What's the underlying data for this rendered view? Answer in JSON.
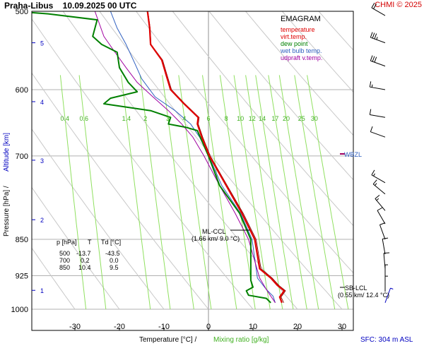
{
  "header": {
    "title": "Praha-Libus    10.09.2025 00 UTC",
    "credit": "CHMI © 2025"
  },
  "footer": {
    "surface": "SFC: 304 m ASL"
  },
  "colors": {
    "temperature": "#e00000",
    "virt_temp": "#800000",
    "dew_point": "#008000",
    "wet_bulb": "#3060c0",
    "updraft": "#a000a0",
    "mixing_ratio": "#90e060",
    "dry_adiabat": "#c8c8c8",
    "grid": "#b0b0b0",
    "altitude": "#0000c0",
    "title_red": "#d40000"
  },
  "chart_data": {
    "type": "line",
    "title": "EMAGRAM",
    "xlabel": "Temperature [°C]  /",
    "xlabel2": "Mixing ratio [g/kg]",
    "ylabel": "Pressure [hPa]  /",
    "ylabel2": "Altitude [km]",
    "xlim": [
      -40,
      33
    ],
    "ylim": [
      1000,
      500
    ],
    "x_ticks": [
      -30,
      -20,
      -10,
      0,
      10,
      20,
      30
    ],
    "pressure_ticks": [
      500,
      600,
      700,
      850,
      925,
      1000
    ],
    "altitude_ticks": [
      {
        "label": "1",
        "p": 957
      },
      {
        "label": "2",
        "p": 812
      },
      {
        "label": "3",
        "p": 707
      },
      {
        "label": "4",
        "p": 617
      },
      {
        "label": "5",
        "p": 538
      }
    ],
    "mixing_ratio_lines": [
      0.4,
      0.6,
      1.4,
      2,
      3,
      4,
      6,
      8,
      10,
      12,
      14,
      17,
      20,
      25,
      30
    ],
    "legend": [
      {
        "label": "temperature",
        "color": "#e00000"
      },
      {
        "label": "virt.temp.",
        "color": "#e00000"
      },
      {
        "label": "dew point",
        "color": "#008000"
      },
      {
        "label": "wet bulb temp.",
        "color": "#3060c0"
      },
      {
        "label": "udpraft v.temp.",
        "color": "#a000a0"
      }
    ],
    "series": [
      {
        "name": "temperature",
        "points": [
          [
            16.5,
            985
          ],
          [
            16.0,
            972
          ],
          [
            17.0,
            958
          ],
          [
            15.5,
            946
          ],
          [
            14.0,
            930
          ],
          [
            11.5,
            910
          ],
          [
            10.4,
            850
          ],
          [
            7.5,
            800
          ],
          [
            4.0,
            750
          ],
          [
            0.2,
            700
          ],
          [
            -1.5,
            670
          ],
          [
            -2.5,
            650
          ],
          [
            -2.3,
            640
          ],
          [
            -5.5,
            620
          ],
          [
            -8.5,
            600
          ],
          [
            -9.5,
            580
          ],
          [
            -10.5,
            560
          ],
          [
            -13.0,
            540
          ],
          [
            -13.2,
            520
          ],
          [
            -13.7,
            500
          ]
        ]
      },
      {
        "name": "virt.temp.",
        "points": [
          [
            16.9,
            985
          ],
          [
            16.3,
            972
          ],
          [
            17.3,
            958
          ],
          [
            15.8,
            946
          ],
          [
            14.3,
            930
          ],
          [
            11.8,
            910
          ],
          [
            10.7,
            850
          ],
          [
            7.8,
            800
          ],
          [
            4.2,
            750
          ],
          [
            0.4,
            700
          ],
          [
            -1.3,
            670
          ],
          [
            -2.3,
            650
          ],
          [
            -2.1,
            640
          ],
          [
            -5.3,
            620
          ],
          [
            -8.3,
            600
          ],
          [
            -9.3,
            580
          ],
          [
            -10.3,
            560
          ],
          [
            -12.9,
            540
          ],
          [
            -13.1,
            520
          ],
          [
            -13.6,
            500
          ]
        ]
      },
      {
        "name": "dew point",
        "points": [
          [
            14.0,
            985
          ],
          [
            13.0,
            975
          ],
          [
            9.0,
            968
          ],
          [
            8.5,
            958
          ],
          [
            10.0,
            950
          ],
          [
            9.5,
            935
          ],
          [
            9.5,
            850
          ],
          [
            7.0,
            800
          ],
          [
            2.5,
            750
          ],
          [
            0.0,
            700
          ],
          [
            -2.5,
            660
          ],
          [
            -5.0,
            655
          ],
          [
            -9.0,
            650
          ],
          [
            -8.5,
            640
          ],
          [
            -13.0,
            630
          ],
          [
            -23.5,
            620
          ],
          [
            -22.0,
            612
          ],
          [
            -16.0,
            603
          ],
          [
            -18.0,
            590
          ],
          [
            -20.0,
            570
          ],
          [
            -20.5,
            550
          ],
          [
            -24.0,
            540
          ],
          [
            -26.0,
            530
          ],
          [
            -25.0,
            510
          ],
          [
            -36.0,
            503
          ],
          [
            -43.5,
            500
          ]
        ]
      },
      {
        "name": "wet bulb temp.",
        "points": [
          [
            15.0,
            985
          ],
          [
            14.5,
            970
          ],
          [
            13.0,
            955
          ],
          [
            11.0,
            930
          ],
          [
            9.8,
            850
          ],
          [
            7.2,
            800
          ],
          [
            3.0,
            750
          ],
          [
            0.1,
            700
          ],
          [
            -2.0,
            670
          ],
          [
            -4.0,
            650
          ],
          [
            -7.5,
            630
          ],
          [
            -12.0,
            610
          ],
          [
            -15.0,
            585
          ],
          [
            -16.5,
            565
          ],
          [
            -18.5,
            540
          ],
          [
            -20.5,
            520
          ],
          [
            -22.0,
            500
          ]
        ]
      },
      {
        "name": "udpraft v.temp.",
        "points": [
          [
            15.0,
            985
          ],
          [
            14.0,
            970
          ],
          [
            13.0,
            955
          ],
          [
            11.5,
            930
          ],
          [
            9.0,
            850
          ],
          [
            6.0,
            800
          ],
          [
            2.5,
            750
          ],
          [
            -1.0,
            700
          ],
          [
            -3.5,
            670
          ],
          [
            -6.0,
            650
          ],
          [
            -9.0,
            630
          ],
          [
            -12.5,
            610
          ],
          [
            -16.0,
            590
          ],
          [
            -18.5,
            570
          ],
          [
            -21.0,
            550
          ],
          [
            -23.5,
            530
          ],
          [
            -25.5,
            500
          ]
        ]
      }
    ],
    "table": {
      "headers": [
        "p [hPa]",
        "T",
        "Td [°C]"
      ],
      "rows": [
        [
          "500",
          "-13.7",
          "-43.5"
        ],
        [
          "700",
          "0.2",
          "0.0"
        ],
        [
          "850",
          "10.4",
          "9.5"
        ]
      ]
    },
    "annotations": {
      "wbzl": "WBZL",
      "ml_ccl": "ML-CCL",
      "ml_ccl_detail": "(1.66 km/ 9.0 °C)",
      "sb_lcl": "SB-LCL",
      "sb_lcl_detail": "(0.55 km/ 12.4 °C)"
    },
    "wind_barbs": [
      {
        "p": 505,
        "dir": 300,
        "speed": 20
      },
      {
        "p": 538,
        "dir": 290,
        "speed": 35
      },
      {
        "p": 568,
        "dir": 290,
        "speed": 30
      },
      {
        "p": 600,
        "dir": 280,
        "speed": 15
      },
      {
        "p": 640,
        "dir": 280,
        "speed": 10
      },
      {
        "p": 670,
        "dir": 290,
        "speed": 10
      },
      {
        "p": 745,
        "dir": 300,
        "speed": 15
      },
      {
        "p": 765,
        "dir": 310,
        "speed": 15
      },
      {
        "p": 795,
        "dir": 320,
        "speed": 15
      },
      {
        "p": 820,
        "dir": 330,
        "speed": 10
      },
      {
        "p": 850,
        "dir": 340,
        "speed": 10
      },
      {
        "p": 880,
        "dir": 350,
        "speed": 10
      },
      {
        "p": 910,
        "dir": 355,
        "speed": 10
      },
      {
        "p": 935,
        "dir": 0,
        "speed": 5
      },
      {
        "p": 960,
        "dir": 0,
        "speed": 5
      },
      {
        "p": 985,
        "dir": 20,
        "speed": 5
      }
    ]
  }
}
